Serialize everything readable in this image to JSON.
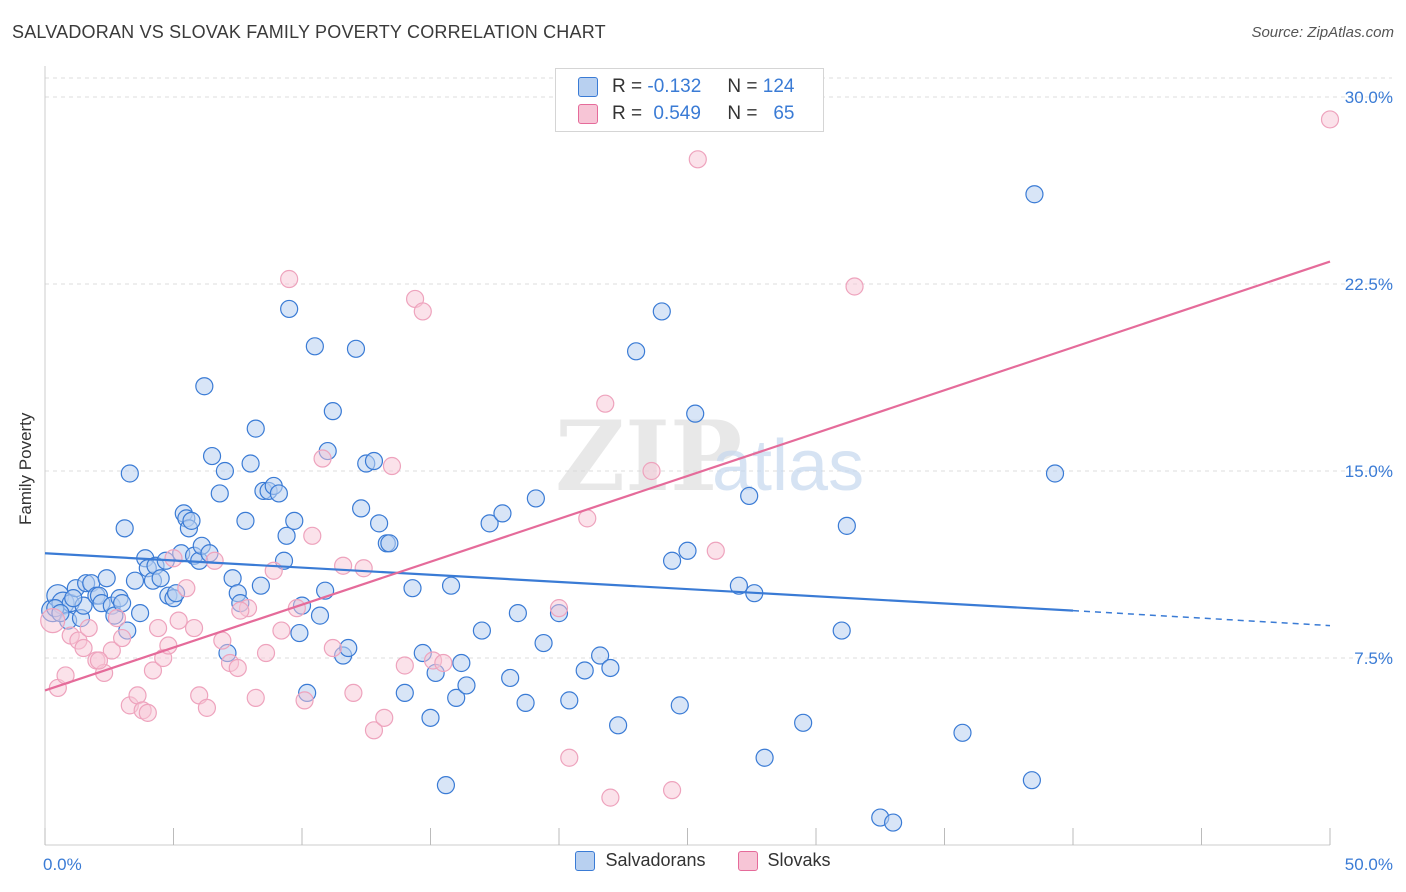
{
  "title": "SALVADORAN VS SLOVAK FAMILY POVERTY CORRELATION CHART",
  "source": "Source: ZipAtlas.com",
  "watermark": "ZIPatlas",
  "colors": {
    "blue": "#3a7bd5",
    "blue_fill": "#b8d0f0",
    "pink": "#e56b9a",
    "pink_fill": "#f7c5d6",
    "text_blue": "#3a7bd5"
  },
  "legend": {
    "rows": [
      {
        "r_label": "R =",
        "r_value": "-0.132",
        "n_label": "N =",
        "n_value": "124"
      },
      {
        "r_label": "R =",
        "r_value": "0.549",
        "n_label": "N =",
        "n_value": "65"
      }
    ]
  },
  "bottom_legend": {
    "series1": "Salvadorans",
    "series2": "Slovaks"
  },
  "chart_data": {
    "type": "scatter",
    "title": "SALVADORAN VS SLOVAK FAMILY POVERTY CORRELATION CHART",
    "xlabel": "",
    "ylabel": "Family Poverty",
    "xlim": [
      0,
      50
    ],
    "ylim": [
      0,
      30
    ],
    "x_tick_labels": [
      "0.0%",
      "50.0%"
    ],
    "y_tick_labels": [
      "7.5%",
      "15.0%",
      "22.5%",
      "30.0%"
    ],
    "y_ticks": [
      7.5,
      15.0,
      22.5,
      30.0
    ],
    "grid": true,
    "legend_position": "top-center",
    "series": [
      {
        "name": "Salvadorans",
        "color": "#3a7bd5",
        "trend": {
          "x0": 0,
          "y0": 11.7,
          "x1": 40,
          "y1": 9.4,
          "dash_to": 50,
          "dash_y": 8.8
        },
        "points": [
          [
            0.3,
            9.4
          ],
          [
            0.5,
            10.0
          ],
          [
            0.7,
            9.7
          ],
          [
            0.9,
            9.0
          ],
          [
            1.0,
            9.7
          ],
          [
            1.2,
            10.3
          ],
          [
            1.4,
            9.1
          ],
          [
            1.5,
            9.6
          ],
          [
            1.6,
            10.5
          ],
          [
            1.8,
            10.5
          ],
          [
            2.0,
            10.0
          ],
          [
            2.1,
            10.0
          ],
          [
            2.2,
            9.7
          ],
          [
            2.4,
            10.7
          ],
          [
            2.6,
            9.6
          ],
          [
            2.7,
            9.2
          ],
          [
            2.9,
            9.9
          ],
          [
            3.0,
            9.7
          ],
          [
            3.1,
            12.7
          ],
          [
            3.2,
            8.6
          ],
          [
            3.3,
            14.9
          ],
          [
            3.5,
            10.6
          ],
          [
            3.7,
            9.3
          ],
          [
            3.9,
            11.5
          ],
          [
            4.0,
            11.1
          ],
          [
            4.2,
            10.6
          ],
          [
            4.3,
            11.2
          ],
          [
            4.5,
            10.7
          ],
          [
            4.7,
            11.4
          ],
          [
            4.8,
            10.0
          ],
          [
            5.0,
            9.9
          ],
          [
            5.1,
            10.1
          ],
          [
            5.3,
            11.7
          ],
          [
            5.4,
            13.3
          ],
          [
            5.5,
            13.1
          ],
          [
            5.6,
            12.7
          ],
          [
            5.7,
            13.0
          ],
          [
            5.8,
            11.6
          ],
          [
            6.0,
            11.4
          ],
          [
            6.1,
            12.0
          ],
          [
            6.2,
            18.4
          ],
          [
            6.4,
            11.7
          ],
          [
            6.5,
            15.6
          ],
          [
            6.8,
            14.1
          ],
          [
            7.0,
            15.0
          ],
          [
            7.3,
            10.7
          ],
          [
            7.5,
            10.1
          ],
          [
            7.6,
            9.7
          ],
          [
            7.8,
            13.0
          ],
          [
            8.0,
            15.3
          ],
          [
            8.2,
            16.7
          ],
          [
            8.4,
            10.4
          ],
          [
            8.5,
            14.2
          ],
          [
            8.7,
            14.2
          ],
          [
            8.9,
            14.4
          ],
          [
            9.1,
            14.1
          ],
          [
            9.3,
            11.4
          ],
          [
            9.4,
            12.4
          ],
          [
            9.5,
            21.5
          ],
          [
            9.7,
            13.0
          ],
          [
            9.9,
            8.5
          ],
          [
            10.0,
            9.6
          ],
          [
            10.2,
            6.1
          ],
          [
            10.5,
            20.0
          ],
          [
            10.7,
            9.2
          ],
          [
            10.9,
            10.2
          ],
          [
            11.0,
            15.8
          ],
          [
            11.2,
            17.4
          ],
          [
            11.6,
            7.6
          ],
          [
            11.8,
            7.9
          ],
          [
            12.1,
            19.9
          ],
          [
            12.3,
            13.5
          ],
          [
            12.5,
            15.3
          ],
          [
            12.8,
            15.4
          ],
          [
            13.0,
            12.9
          ],
          [
            13.3,
            12.1
          ],
          [
            13.4,
            12.1
          ],
          [
            14.0,
            6.1
          ],
          [
            14.3,
            10.3
          ],
          [
            14.7,
            7.7
          ],
          [
            15.0,
            5.1
          ],
          [
            15.2,
            6.9
          ],
          [
            15.6,
            2.4
          ],
          [
            15.8,
            10.4
          ],
          [
            16.0,
            5.9
          ],
          [
            16.2,
            7.3
          ],
          [
            16.4,
            6.4
          ],
          [
            17.0,
            8.6
          ],
          [
            17.3,
            12.9
          ],
          [
            17.8,
            13.3
          ],
          [
            18.1,
            6.7
          ],
          [
            18.4,
            9.3
          ],
          [
            18.7,
            5.7
          ],
          [
            19.1,
            13.9
          ],
          [
            19.4,
            8.1
          ],
          [
            20.0,
            9.3
          ],
          [
            20.4,
            5.8
          ],
          [
            21.0,
            7.0
          ],
          [
            21.6,
            7.6
          ],
          [
            22.0,
            7.1
          ],
          [
            22.3,
            4.8
          ],
          [
            23.0,
            19.8
          ],
          [
            24.0,
            21.4
          ],
          [
            24.4,
            11.4
          ],
          [
            24.7,
            5.6
          ],
          [
            25.0,
            11.8
          ],
          [
            25.3,
            17.3
          ],
          [
            27.0,
            10.4
          ],
          [
            27.4,
            14.0
          ],
          [
            27.6,
            10.1
          ],
          [
            28.0,
            3.5
          ],
          [
            29.5,
            4.9
          ],
          [
            31.0,
            8.6
          ],
          [
            31.2,
            12.8
          ],
          [
            32.5,
            1.1
          ],
          [
            33.0,
            0.9
          ],
          [
            35.7,
            4.5
          ],
          [
            38.4,
            2.6
          ],
          [
            38.5,
            26.1
          ],
          [
            39.3,
            14.9
          ],
          [
            0.4,
            9.5
          ],
          [
            0.6,
            9.3
          ],
          [
            1.1,
            9.9
          ],
          [
            7.1,
            7.7
          ]
        ],
        "sizes_note": ""
      },
      {
        "name": "Slovaks",
        "color": "#e56b9a",
        "trend": {
          "x0": 0,
          "y0": 6.2,
          "x1": 50,
          "y1": 23.4
        },
        "points": [
          [
            0.3,
            9.0
          ],
          [
            0.5,
            6.3
          ],
          [
            0.8,
            6.8
          ],
          [
            1.0,
            8.4
          ],
          [
            1.3,
            8.2
          ],
          [
            1.7,
            8.7
          ],
          [
            2.0,
            7.4
          ],
          [
            2.3,
            6.9
          ],
          [
            2.6,
            7.8
          ],
          [
            2.8,
            9.1
          ],
          [
            3.0,
            8.3
          ],
          [
            3.3,
            5.6
          ],
          [
            3.6,
            6.0
          ],
          [
            3.8,
            5.4
          ],
          [
            4.0,
            5.3
          ],
          [
            4.2,
            7.0
          ],
          [
            4.4,
            8.7
          ],
          [
            4.6,
            7.5
          ],
          [
            4.8,
            8.0
          ],
          [
            5.0,
            11.5
          ],
          [
            5.2,
            9.0
          ],
          [
            5.5,
            10.3
          ],
          [
            5.8,
            8.7
          ],
          [
            6.0,
            6.0
          ],
          [
            6.3,
            5.5
          ],
          [
            6.6,
            11.4
          ],
          [
            6.9,
            8.2
          ],
          [
            7.2,
            7.3
          ],
          [
            7.5,
            7.1
          ],
          [
            7.9,
            9.5
          ],
          [
            8.2,
            5.9
          ],
          [
            8.6,
            7.7
          ],
          [
            8.9,
            11.0
          ],
          [
            9.2,
            8.6
          ],
          [
            9.5,
            22.7
          ],
          [
            9.8,
            9.5
          ],
          [
            10.1,
            5.8
          ],
          [
            10.4,
            12.4
          ],
          [
            10.8,
            15.5
          ],
          [
            11.2,
            7.9
          ],
          [
            11.6,
            11.2
          ],
          [
            12.0,
            6.1
          ],
          [
            12.4,
            11.1
          ],
          [
            12.8,
            4.6
          ],
          [
            13.2,
            5.1
          ],
          [
            13.5,
            15.2
          ],
          [
            14.0,
            7.2
          ],
          [
            14.4,
            21.9
          ],
          [
            14.7,
            21.4
          ],
          [
            15.1,
            7.4
          ],
          [
            15.5,
            7.3
          ],
          [
            20.0,
            9.5
          ],
          [
            20.4,
            3.5
          ],
          [
            21.1,
            13.1
          ],
          [
            21.8,
            17.7
          ],
          [
            22.0,
            1.9
          ],
          [
            23.6,
            15.0
          ],
          [
            24.4,
            2.2
          ],
          [
            25.4,
            27.5
          ],
          [
            26.1,
            11.8
          ],
          [
            31.5,
            22.4
          ],
          [
            50.0,
            29.1
          ],
          [
            1.5,
            7.9
          ],
          [
            2.1,
            7.4
          ],
          [
            7.6,
            9.4
          ]
        ]
      }
    ]
  }
}
